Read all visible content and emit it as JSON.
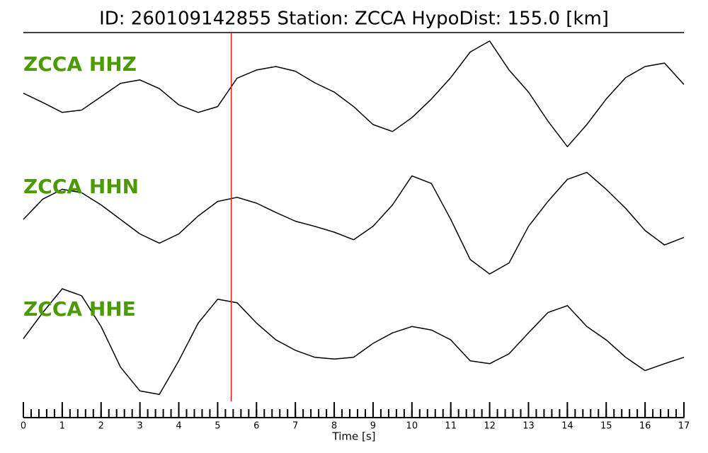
{
  "chart_data": {
    "type": "line",
    "title": "ID: 260109142855   Station: ZCCA   HypoDist:   155.0 [km]",
    "x_label": "Time [s]",
    "x": [
      0,
      0.5,
      1,
      1.5,
      2,
      2.5,
      3,
      3.5,
      4,
      4.5,
      5,
      5.5,
      6,
      6.5,
      7,
      7.5,
      8,
      8.5,
      9,
      9.5,
      10,
      10.5,
      11,
      11.5,
      12,
      12.5,
      13,
      13.5,
      14,
      14.5,
      15,
      15.5,
      16,
      16.5,
      17
    ],
    "xlim": [
      0,
      17
    ],
    "xticks": [
      0,
      1,
      2,
      3,
      4,
      5,
      6,
      7,
      8,
      9,
      10,
      11,
      12,
      13,
      14,
      15,
      16,
      17
    ],
    "xminor": 0.2,
    "ylim": [
      -1,
      1
    ],
    "marker_x": 5.35,
    "marker_color": "#e41a1c",
    "label_color": "#4a9a00",
    "series": [
      {
        "name": "ZCCA HHZ",
        "color": "#000000",
        "values": [
          0.04,
          -0.12,
          -0.29,
          -0.25,
          -0.02,
          0.21,
          0.27,
          0.12,
          -0.16,
          -0.29,
          -0.19,
          0.3,
          0.44,
          0.5,
          0.42,
          0.22,
          0.06,
          -0.19,
          -0.5,
          -0.62,
          -0.38,
          -0.06,
          0.31,
          0.75,
          0.94,
          0.44,
          0.06,
          -0.44,
          -0.88,
          -0.5,
          -0.06,
          0.31,
          0.5,
          0.56,
          0.19
        ]
      },
      {
        "name": "ZCCA HHN",
        "color": "#000000",
        "values": [
          0,
          0.35,
          0.52,
          0.46,
          0.25,
          0,
          -0.25,
          -0.41,
          -0.25,
          0.06,
          0.31,
          0.38,
          0.28,
          0.12,
          -0.03,
          -0.12,
          -0.22,
          -0.35,
          -0.12,
          0.25,
          0.75,
          0.62,
          0,
          -0.69,
          -0.94,
          -0.75,
          -0.12,
          0.31,
          0.69,
          0.81,
          0.52,
          0.19,
          -0.19,
          -0.44,
          -0.31
        ]
      },
      {
        "name": "ZCCA HHE",
        "color": "#000000",
        "values": [
          0.14,
          0.59,
          1.0,
          0.88,
          0.35,
          -0.35,
          -0.76,
          -0.82,
          -0.24,
          0.41,
          0.82,
          0.76,
          0.41,
          0.12,
          -0.06,
          -0.18,
          -0.21,
          -0.18,
          0.06,
          0.24,
          0.35,
          0.29,
          0.12,
          -0.24,
          -0.29,
          -0.12,
          0.24,
          0.59,
          0.71,
          0.35,
          0.12,
          -0.18,
          -0.41,
          -0.29,
          -0.18
        ]
      }
    ]
  }
}
